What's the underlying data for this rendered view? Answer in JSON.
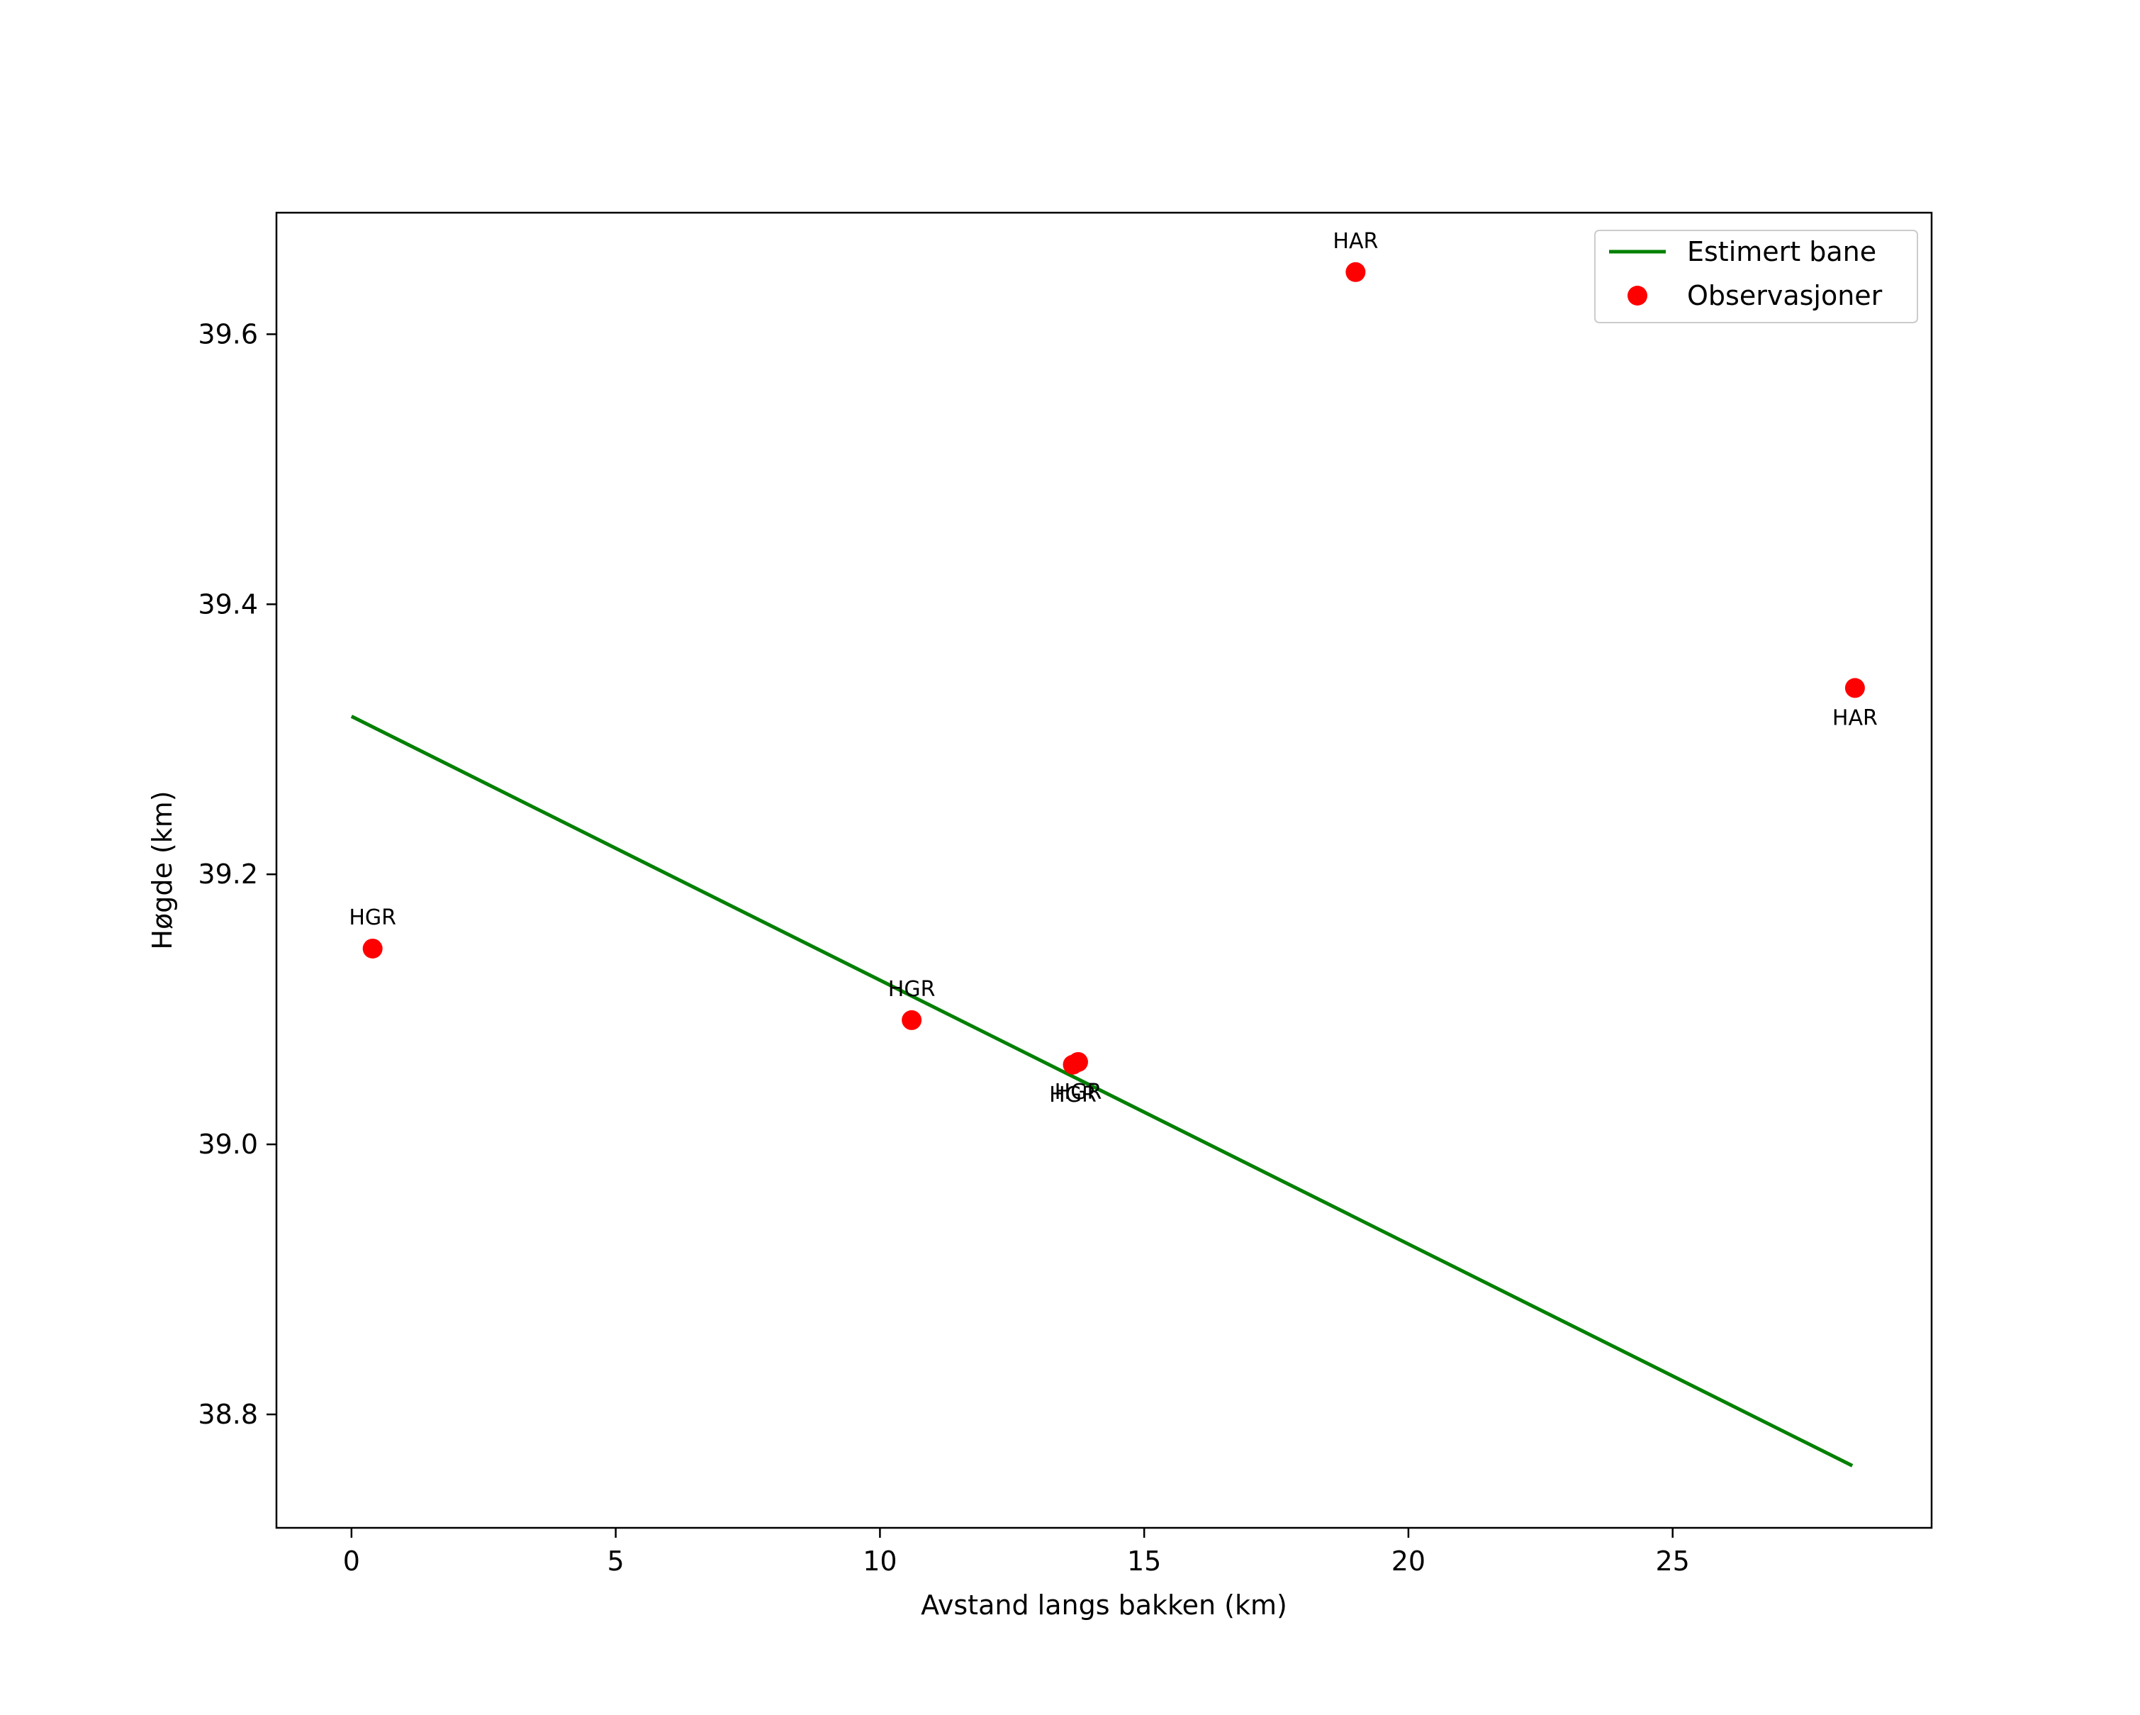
{
  "chart_data": {
    "type": "line+scatter",
    "title": "",
    "xlabel": "Avstand langs bakken (km)",
    "ylabel": "Høgde (km)",
    "xlim": [
      -1.42,
      29.9
    ],
    "ylim": [
      38.716,
      39.69
    ],
    "xticks": [
      0,
      5,
      10,
      15,
      20,
      25
    ],
    "yticks": [
      38.8,
      39.0,
      39.2,
      39.4,
      39.6
    ],
    "xtick_labels": [
      "0",
      "5",
      "10",
      "15",
      "20",
      "25"
    ],
    "ytick_labels": [
      "38.8",
      "39.0",
      "39.2",
      "39.4",
      "39.6"
    ],
    "grid": false,
    "legend_position": "top-right",
    "series": [
      {
        "name": "Estimert bane",
        "kind": "line",
        "color": "#008000",
        "x": [
          0.0,
          28.4
        ],
        "y": [
          39.317,
          38.762
        ]
      },
      {
        "name": "Observasjoner",
        "kind": "scatter",
        "color": "#ff0000",
        "points": [
          {
            "x": 0.4,
            "y": 39.145,
            "label": "HGR",
            "label_pos": "above"
          },
          {
            "x": 10.6,
            "y": 39.092,
            "label": "HGR",
            "label_pos": "above"
          },
          {
            "x": 13.65,
            "y": 39.059,
            "label": "HGR",
            "label_pos": "below"
          },
          {
            "x": 13.75,
            "y": 39.061,
            "label": "HGR",
            "label_pos": "below"
          },
          {
            "x": 19.0,
            "y": 39.646,
            "label": "HAR",
            "label_pos": "above"
          },
          {
            "x": 28.45,
            "y": 39.338,
            "label": "HAR",
            "label_pos": "below"
          }
        ]
      }
    ]
  }
}
